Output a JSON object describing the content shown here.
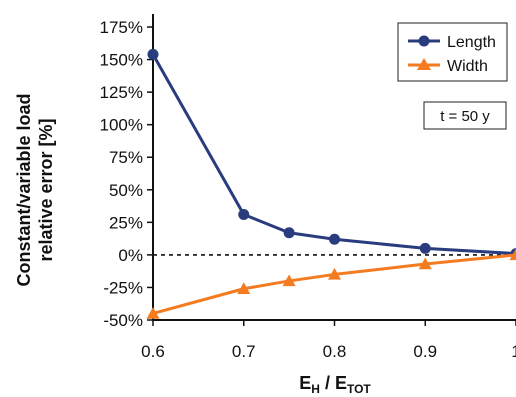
{
  "chart_data": {
    "type": "line",
    "ylabel_line1": "Constant/variable load",
    "ylabel_line2": "relative error [%]",
    "xlabel": {
      "main": "E",
      "sub1": "H",
      "sep": " / ",
      "main2": "E",
      "sub2": "TOT"
    },
    "x_ticks": [
      "0.6",
      "0.7",
      "0.8",
      "0.9",
      "1"
    ],
    "x_tick_values": [
      0.6,
      0.7,
      0.8,
      0.9,
      1.0
    ],
    "y_ticks": [
      "-50%",
      "-25%",
      "0%",
      "25%",
      "50%",
      "75%",
      "100%",
      "125%",
      "150%",
      "175%"
    ],
    "y_tick_values": [
      -50,
      -25,
      0,
      25,
      50,
      75,
      100,
      125,
      150,
      175
    ],
    "xlim": [
      0.6,
      1.0
    ],
    "ylim": [
      -50,
      185
    ],
    "reference_line": {
      "y": 0,
      "style": "dashed"
    },
    "series": [
      {
        "name": "Length",
        "color": "#283C7E",
        "marker": "circle",
        "points": [
          {
            "x": 0.6,
            "y": 154
          },
          {
            "x": 0.7,
            "y": 31
          },
          {
            "x": 0.75,
            "y": 17
          },
          {
            "x": 0.8,
            "y": 12
          },
          {
            "x": 0.9,
            "y": 5
          },
          {
            "x": 1.0,
            "y": 1
          }
        ]
      },
      {
        "name": "Width",
        "color": "#F47B20",
        "marker": "triangle",
        "points": [
          {
            "x": 0.6,
            "y": -45
          },
          {
            "x": 0.7,
            "y": -26
          },
          {
            "x": 0.75,
            "y": -20
          },
          {
            "x": 0.8,
            "y": -15
          },
          {
            "x": 0.9,
            "y": -7
          },
          {
            "x": 1.0,
            "y": 0
          }
        ]
      }
    ],
    "legend": {
      "placement": "top-right",
      "entries": [
        "Length",
        "Width"
      ]
    },
    "annotation": "t = 50 y"
  }
}
